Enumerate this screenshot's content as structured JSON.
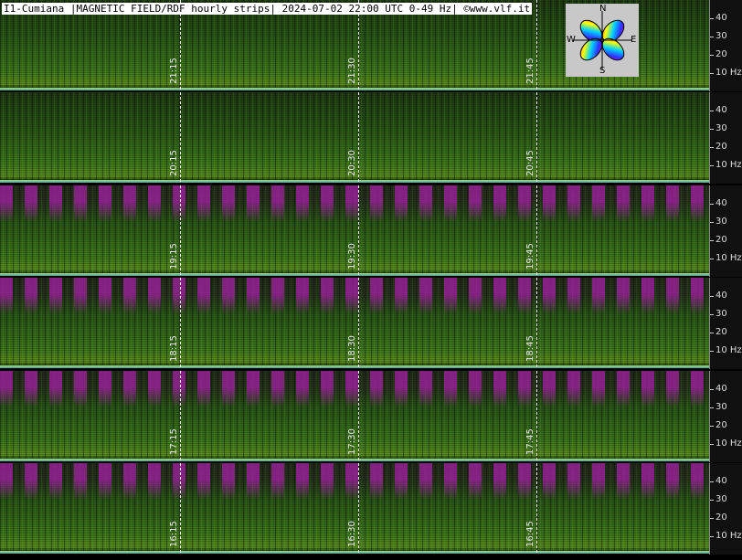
{
  "header": {
    "title": "I1-Cumiana |MAGNETIC FIELD/RDF hourly strips| 2024-07-02 22:00 UTC 0-49 Hz| ©www.vlf.it"
  },
  "frequency_ticks": [
    "40",
    "30",
    "20",
    "10 Hz"
  ],
  "strips": [
    {
      "times": [
        "21:15",
        "21:30",
        "21:45"
      ]
    },
    {
      "times": [
        "20:15",
        "20:30",
        "20:45"
      ]
    },
    {
      "times": [
        "19:15",
        "19:30",
        "19:45"
      ]
    },
    {
      "times": [
        "18:15",
        "18:30",
        "18:45"
      ]
    },
    {
      "times": [
        "17:15",
        "17:30",
        "17:45"
      ]
    },
    {
      "times": [
        "16:15",
        "16:30",
        "16:45"
      ]
    }
  ],
  "compass": {
    "labels": [
      "N",
      "E",
      "S",
      "W"
    ]
  }
}
